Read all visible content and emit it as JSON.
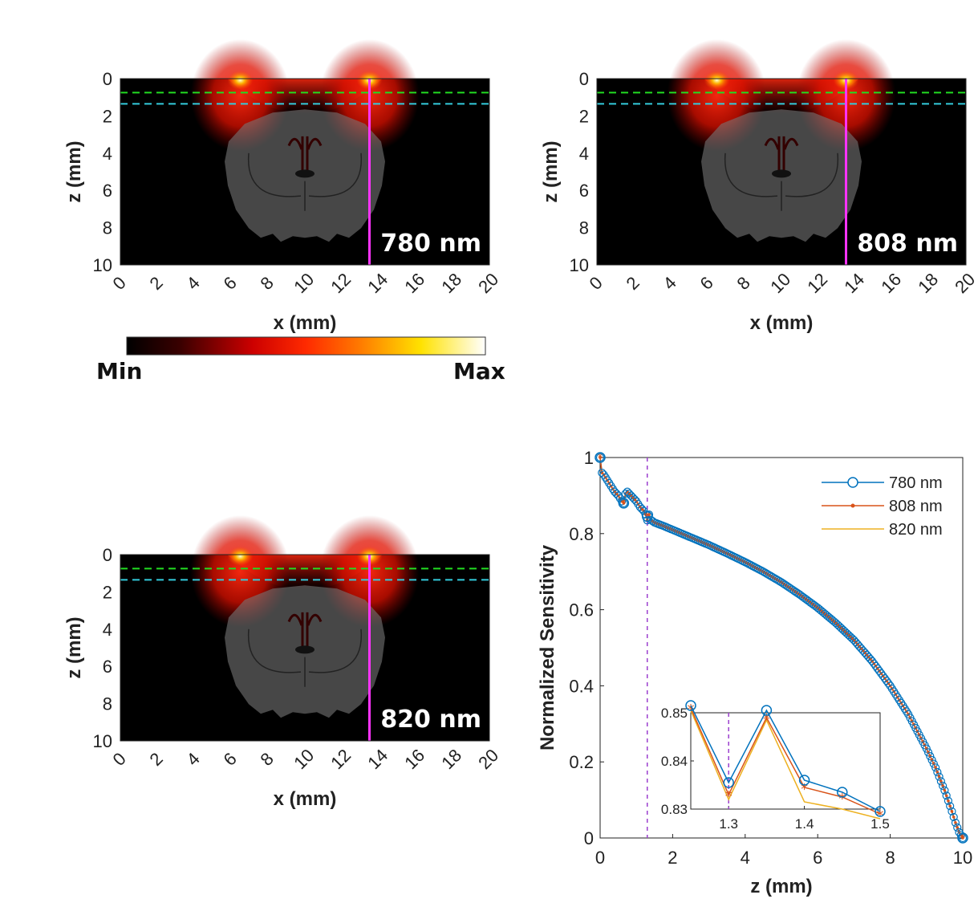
{
  "chart_data": [
    {
      "type": "heatmap",
      "wavelength_label": "780 nm",
      "xlabel": "x (mm)",
      "ylabel": "z (mm)",
      "xlim": [
        0,
        20
      ],
      "ylim": [
        10,
        0
      ],
      "xticks": [
        "0",
        "2",
        "4",
        "6",
        "8",
        "10",
        "12",
        "14",
        "16",
        "18",
        "20"
      ],
      "yticks": [
        "0",
        "2",
        "4",
        "6",
        "8",
        "10"
      ],
      "source_x": [
        6.5,
        13.5
      ],
      "probe_line_x": 13.5,
      "line_z_green": 0.75,
      "line_z_cyan": 1.35
    },
    {
      "type": "heatmap",
      "wavelength_label": "808 nm",
      "xlabel": "x (mm)",
      "ylabel": "z (mm)",
      "xlim": [
        0,
        20
      ],
      "ylim": [
        10,
        0
      ],
      "xticks": [
        "0",
        "2",
        "4",
        "6",
        "8",
        "10",
        "12",
        "14",
        "16",
        "18",
        "20"
      ],
      "yticks": [
        "0",
        "2",
        "4",
        "6",
        "8",
        "10"
      ],
      "source_x": [
        6.5,
        13.5
      ],
      "probe_line_x": 13.5,
      "line_z_green": 0.75,
      "line_z_cyan": 1.35
    },
    {
      "type": "heatmap",
      "wavelength_label": "820 nm",
      "xlabel": "x (mm)",
      "ylabel": "z (mm)",
      "xlim": [
        0,
        20
      ],
      "ylim": [
        10,
        0
      ],
      "xticks": [
        "0",
        "2",
        "4",
        "6",
        "8",
        "10",
        "12",
        "14",
        "16",
        "18",
        "20"
      ],
      "yticks": [
        "0",
        "2",
        "4",
        "6",
        "8",
        "10"
      ],
      "source_x": [
        6.5,
        13.5
      ],
      "probe_line_x": 13.5,
      "line_z_green": 0.75,
      "line_z_cyan": 1.35
    },
    {
      "type": "line",
      "xlabel": "z (mm)",
      "ylabel": "Normalized Sensitivity",
      "xlim": [
        0,
        10
      ],
      "ylim": [
        0,
        1
      ],
      "xticks": [
        "0",
        "2",
        "4",
        "6",
        "8",
        "10"
      ],
      "yticks": [
        "0",
        "0.2",
        "0.4",
        "0.6",
        "0.8",
        "1"
      ],
      "dashed_line_x": 1.3,
      "legend_position": "top-right",
      "series": [
        {
          "name": "780 nm",
          "color": "#0072BD",
          "marker": "circle"
        },
        {
          "name": "808 nm",
          "color": "#D95319",
          "marker": "dot"
        },
        {
          "name": "820 nm",
          "color": "#EDB120",
          "marker": "none"
        }
      ],
      "x": [
        0,
        0.05,
        0.1,
        0.2,
        0.3,
        0.4,
        0.5,
        0.6,
        0.65,
        0.7,
        0.75,
        0.8,
        0.9,
        1.0,
        1.1,
        1.2,
        1.25,
        1.3,
        1.35,
        1.4,
        1.5,
        1.75,
        2.0,
        2.5,
        3.0,
        3.5,
        4.0,
        4.5,
        5.0,
        5.5,
        6.0,
        6.5,
        7.0,
        7.5,
        8.0,
        8.5,
        9.0,
        9.25,
        9.5,
        9.7,
        9.8,
        9.9,
        10.0
      ],
      "y": [
        1.0,
        0.96,
        0.955,
        0.94,
        0.925,
        0.91,
        0.9,
        0.885,
        0.88,
        0.905,
        0.91,
        0.905,
        0.895,
        0.885,
        0.87,
        0.86,
        0.851,
        0.835,
        0.85,
        0.836,
        0.829,
        0.82,
        0.81,
        0.79,
        0.77,
        0.748,
        0.725,
        0.7,
        0.672,
        0.64,
        0.605,
        0.565,
        0.52,
        0.465,
        0.4,
        0.325,
        0.235,
        0.185,
        0.125,
        0.07,
        0.04,
        0.015,
        0.0
      ],
      "inset": {
        "xlim": [
          1.25,
          1.5
        ],
        "ylim": [
          0.83,
          0.85
        ],
        "xticks": [
          "1.3",
          "1.4",
          "1.5"
        ],
        "yticks": [
          "0.83",
          "0.84",
          "0.85"
        ],
        "dashed_line_x": 1.3,
        "series": [
          {
            "name": "780 nm",
            "x": [
              1.25,
              1.3,
              1.35,
              1.4,
              1.45,
              1.5
            ],
            "y": [
              0.8515,
              0.8355,
              0.8505,
              0.836,
              0.8335,
              0.8295
            ]
          },
          {
            "name": "808 nm",
            "x": [
              1.25,
              1.3,
              1.35,
              1.4,
              1.45,
              1.5
            ],
            "y": [
              0.851,
              0.833,
              0.849,
              0.8345,
              0.8325,
              0.829
            ]
          },
          {
            "name": "820 nm",
            "x": [
              1.25,
              1.3,
              1.35,
              1.4,
              1.45,
              1.5
            ],
            "y": [
              0.8505,
              0.832,
              0.8485,
              0.8315,
              0.83,
              0.828
            ]
          }
        ]
      }
    }
  ],
  "colorbar": {
    "min_label": "Min",
    "max_label": "Max"
  }
}
